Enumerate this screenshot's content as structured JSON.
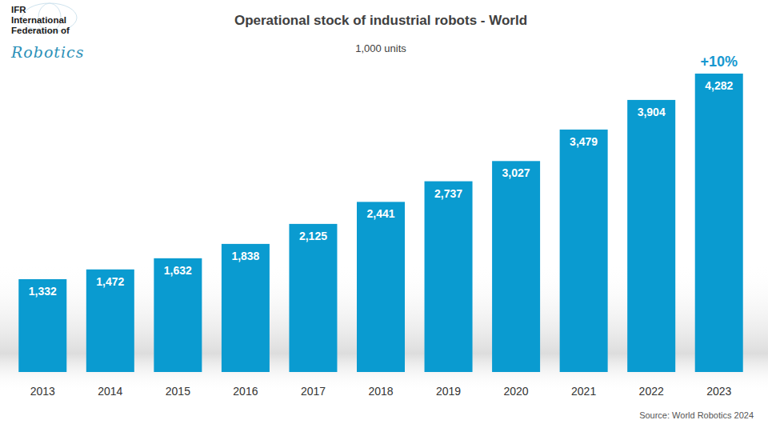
{
  "chart_data": {
    "type": "bar",
    "title": "Operational stock of industrial robots - World",
    "subtitle": "1,000 units",
    "categories": [
      "2013",
      "2014",
      "2015",
      "2016",
      "2017",
      "2018",
      "2019",
      "2020",
      "2021",
      "2022",
      "2023"
    ],
    "values": [
      1332,
      1472,
      1632,
      1838,
      2125,
      2441,
      2737,
      3027,
      3479,
      3904,
      4282
    ],
    "value_labels": [
      "1,332",
      "1,472",
      "1,632",
      "1,838",
      "2,125",
      "2,441",
      "2,737",
      "3,027",
      "3,479",
      "3,904",
      "4,282"
    ],
    "color": "#0a9bd0",
    "ylim": [
      0,
      4500
    ],
    "grid": false,
    "data_labels": true,
    "tick_labels": "x",
    "annotations": [
      {
        "text": "+10%",
        "category": "2023"
      }
    ],
    "source": "Source: World Robotics 2024"
  },
  "logo": {
    "lines": [
      "IFR",
      "International",
      "Federation of"
    ],
    "script": "Robotics"
  }
}
